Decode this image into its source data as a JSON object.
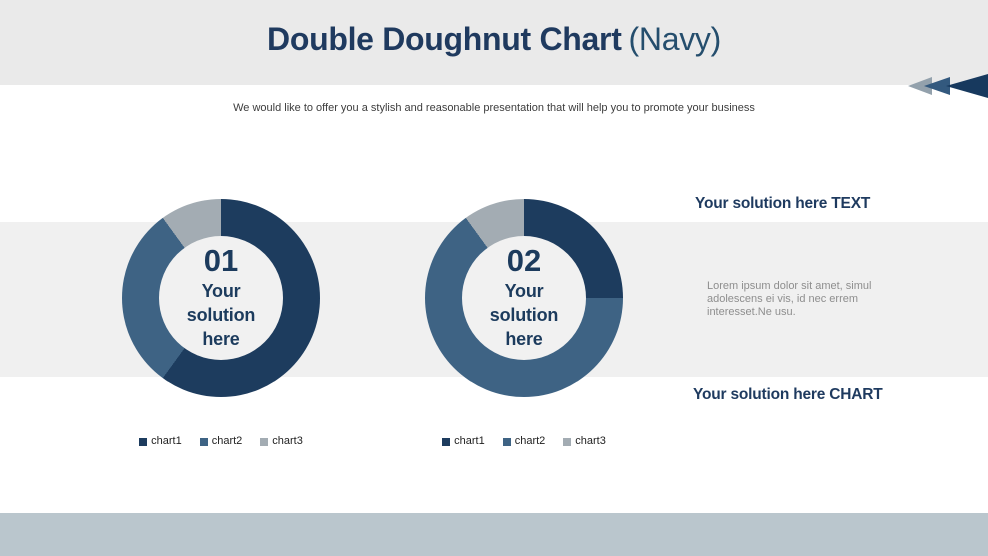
{
  "slide": {
    "title": {
      "main": "Double Doughnut Chart",
      "suffix": "(Navy)"
    },
    "subtitle": "We would like to offer you a stylish and reasonable presentation that will help you to promote your business"
  },
  "right_panel": {
    "text_section_heading": "Your solution here TEXT",
    "text_body": "Lorem ipsum dolor sit amet, simul adolescens ei vis, id nec errem interesset.Ne usu.",
    "chart_section_heading": "Your solution here CHART"
  },
  "nav_arrows": {
    "direction": "left",
    "colors": [
      "#93a1ac",
      "#33597e",
      "#17395e"
    ]
  },
  "colors": {
    "header_bg": "#eaeaea",
    "band_bg": "#f0f0f0",
    "footer_bg": "#bac6cd",
    "title_navy": "#1f3a5f",
    "accent_navy": "#1c3b5d",
    "segment_navy": "#1d3c5e",
    "segment_blue": "#3e6384",
    "segment_gray": "#a3acb3",
    "doughnut_center_bg": "#f1f1f1",
    "body_text_gray": "#8e8e8e"
  },
  "chart_data": [
    {
      "type": "pie",
      "subtype": "doughnut",
      "number": "01",
      "center_label": "Your solution here",
      "categories": [
        "chart1",
        "chart2",
        "chart3"
      ],
      "values": [
        60,
        30,
        10
      ],
      "unit": "percent",
      "start_angle_deg": 0,
      "direction": "clockwise",
      "segment_colors": [
        "#1d3c5e",
        "#3e6384",
        "#a3acb3"
      ],
      "legend_position": "bottom"
    },
    {
      "type": "pie",
      "subtype": "doughnut",
      "number": "02",
      "center_label": "Your solution here",
      "categories": [
        "chart1",
        "chart2",
        "chart3"
      ],
      "values": [
        25,
        65,
        10
      ],
      "unit": "percent",
      "start_angle_deg": 0,
      "direction": "clockwise",
      "segment_colors": [
        "#1d3c5e",
        "#3e6384",
        "#a3acb3"
      ],
      "legend_position": "bottom"
    }
  ]
}
